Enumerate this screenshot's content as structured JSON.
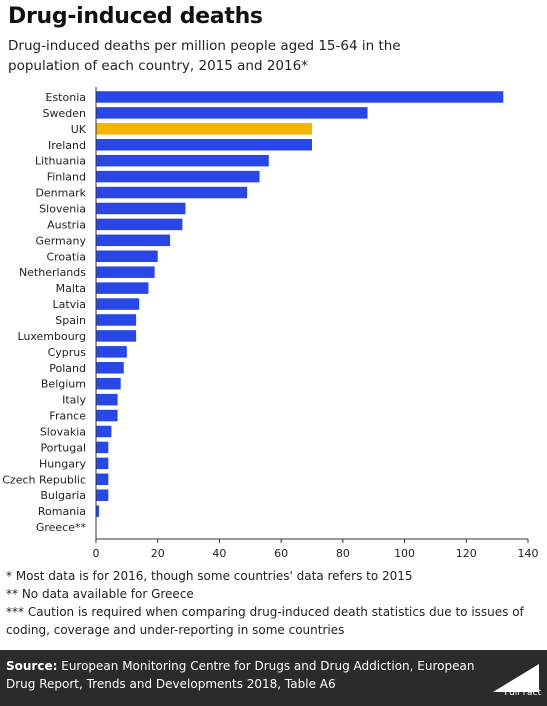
{
  "header": {
    "title": "Drug-induced deaths",
    "subtitle": "Drug-induced deaths per million people aged 15-64 in the population of each country, 2015 and 2016*"
  },
  "notes": [
    "* Most data is for 2016, though some countries' data refers to 2015",
    "** No data available for Greece",
    "*** Caution is required when comparing drug-induced death statistics due to issues of coding, coverage and under-reporting in some countries"
  ],
  "footer": {
    "source_label": "Source:",
    "source_text": "European Monitoring Centre for Drugs and Drug Addiction, European Drug Report, Trends and Developments 2018, Table A6",
    "logo_text": "Full Fact"
  },
  "colors": {
    "bar": "#2946e6",
    "highlight": "#f4b400",
    "axis": "#333333",
    "footer_bg": "#2b2b2b"
  },
  "chart_data": {
    "type": "bar",
    "orientation": "horizontal",
    "categories": [
      "Estonia",
      "Sweden",
      "UK",
      "Ireland",
      "Lithuania",
      "Finland",
      "Denmark",
      "Slovenia",
      "Austria",
      "Germany",
      "Croatia",
      "Netherlands",
      "Malta",
      "Latvia",
      "Spain",
      "Luxembourg",
      "Cyprus",
      "Poland",
      "Belgium",
      "Italy",
      "France",
      "Slovakia",
      "Portugal",
      "Hungary",
      "Czech Republic",
      "Bulgaria",
      "Romania",
      "Greece**"
    ],
    "values": [
      132,
      88,
      70,
      70,
      56,
      53,
      49,
      29,
      28,
      24,
      20,
      19,
      17,
      14,
      13,
      13,
      10,
      9,
      8,
      7,
      7,
      5,
      4,
      4,
      4,
      4,
      1,
      null
    ],
    "highlight_category": "UK",
    "xlim": [
      0,
      140
    ],
    "xticks": [
      0,
      20,
      40,
      60,
      80,
      100,
      120,
      140
    ],
    "grid": false,
    "legend": "none"
  }
}
